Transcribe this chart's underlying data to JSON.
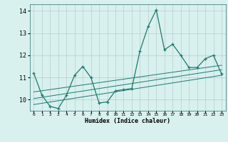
{
  "xlabel": "Humidex (Indice chaleur)",
  "background_color": "#d8f0ee",
  "grid_color": "#b8cece",
  "line_color": "#1a7a6e",
  "x_values": [
    0,
    1,
    2,
    3,
    4,
    5,
    6,
    7,
    8,
    9,
    10,
    11,
    12,
    13,
    14,
    15,
    16,
    17,
    18,
    19,
    20,
    21,
    22,
    23
  ],
  "y_values": [
    11.2,
    10.2,
    9.7,
    9.6,
    10.2,
    11.1,
    11.5,
    11.0,
    9.85,
    9.9,
    10.4,
    10.45,
    10.5,
    12.2,
    13.3,
    14.05,
    12.25,
    12.5,
    12.0,
    11.45,
    11.45,
    11.85,
    12.0,
    11.15
  ],
  "ylim": [
    9.5,
    14.3
  ],
  "xlim": [
    -0.5,
    23.5
  ],
  "yticks": [
    10,
    11,
    12,
    13,
    14
  ],
  "xticks": [
    0,
    1,
    2,
    3,
    4,
    5,
    6,
    7,
    8,
    9,
    10,
    11,
    12,
    13,
    14,
    15,
    16,
    17,
    18,
    19,
    20,
    21,
    22,
    23
  ],
  "regression_lines": [
    {
      "x_start": 0,
      "x_end": 23,
      "y_start": 9.78,
      "y_end": 11.1
    },
    {
      "x_start": 0,
      "x_end": 23,
      "y_start": 10.05,
      "y_end": 11.35
    },
    {
      "x_start": 0,
      "x_end": 23,
      "y_start": 10.35,
      "y_end": 11.55
    }
  ]
}
